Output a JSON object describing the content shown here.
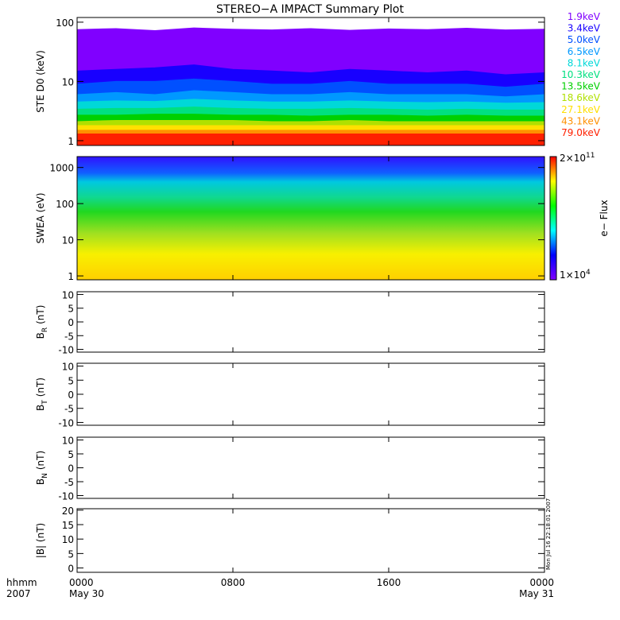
{
  "title": "STEREO−A IMPACT Summary Plot",
  "timestamp": "Mon Jul 16 22:18:01 2007",
  "x_axis": {
    "title": "hhmm",
    "year": "2007",
    "xlim": [
      0,
      24
    ],
    "xticks": [
      {
        "value": 0,
        "label": "0000"
      },
      {
        "value": 8,
        "label": "0800"
      },
      {
        "value": 16,
        "label": "1600"
      },
      {
        "value": 24,
        "label": "0000"
      }
    ],
    "date_labels": [
      {
        "value": 0,
        "label": "May 30"
      },
      {
        "value": 24,
        "label": "May 31"
      }
    ]
  },
  "chart_data": [
    {
      "type": "area",
      "ylabel": {
        "main": "STE D0 (keV)"
      },
      "log": true,
      "ylim": [
        0.83,
        120
      ],
      "yticks": [
        1,
        10,
        100
      ],
      "x": [
        0,
        2,
        4,
        6,
        8,
        10,
        12,
        14,
        16,
        18,
        20,
        22,
        24
      ],
      "series": [
        {
          "name": "1.9keV",
          "color": "#8000ff",
          "values": [
            75,
            78,
            72,
            80,
            76,
            74,
            78,
            73,
            77,
            75,
            79,
            74,
            76
          ]
        },
        {
          "name": "3.4keV",
          "color": "#1800ff",
          "values": [
            15,
            16,
            17,
            19,
            16,
            15,
            14,
            16,
            15,
            14,
            15,
            13,
            14
          ]
        },
        {
          "name": "5.0keV",
          "color": "#0050ff",
          "values": [
            9,
            10,
            10,
            11,
            10,
            9,
            9,
            10,
            9,
            9,
            9,
            8,
            9
          ]
        },
        {
          "name": "6.5keV",
          "color": "#0098ff",
          "values": [
            6,
            6.5,
            6,
            7,
            6.5,
            6,
            6,
            6.5,
            6,
            6,
            6,
            5.5,
            6
          ]
        },
        {
          "name": "8.1keV",
          "color": "#00d8d8",
          "values": [
            4.5,
            4.7,
            4.6,
            5,
            4.7,
            4.5,
            4.5,
            4.7,
            4.5,
            4.4,
            4.5,
            4.3,
            4.4
          ]
        },
        {
          "name": "10.3keV",
          "color": "#00e080",
          "values": [
            3.4,
            3.5,
            3.5,
            3.7,
            3.5,
            3.4,
            3.4,
            3.5,
            3.4,
            3.3,
            3.4,
            3.3,
            3.3
          ]
        },
        {
          "name": "13.5keV",
          "color": "#00d000",
          "values": [
            2.7,
            2.7,
            2.8,
            2.8,
            2.7,
            2.7,
            2.6,
            2.7,
            2.7,
            2.6,
            2.7,
            2.6,
            2.6
          ]
        },
        {
          "name": "18.6keV",
          "color": "#b0e000",
          "values": [
            2.1,
            2.2,
            2.2,
            2.2,
            2.2,
            2.1,
            2.1,
            2.2,
            2.1,
            2.1,
            2.1,
            2.1,
            2.1
          ]
        },
        {
          "name": "27.1keV",
          "color": "#ffe000",
          "values": [
            1.8,
            1.8,
            1.8,
            1.8,
            1.8,
            1.8,
            1.8,
            1.8,
            1.8,
            1.8,
            1.8,
            1.8,
            1.8
          ]
        },
        {
          "name": "43.1keV",
          "color": "#ff9000",
          "values": [
            1.5,
            1.5,
            1.5,
            1.5,
            1.5,
            1.5,
            1.5,
            1.5,
            1.5,
            1.5,
            1.5,
            1.5,
            1.5
          ]
        },
        {
          "name": "79.0keV",
          "color": "#ff2000",
          "values": [
            1.3,
            1.3,
            1.3,
            1.3,
            1.3,
            1.3,
            1.3,
            1.3,
            1.3,
            1.3,
            1.3,
            1.3,
            1.3
          ]
        }
      ]
    },
    {
      "type": "spectrogram",
      "ylabel": {
        "main": "SWEA (eV)"
      },
      "log": true,
      "ylim": [
        0.78,
        2000
      ],
      "yticks": [
        1,
        10,
        100,
        1000
      ],
      "spectrum": [
        {
          "value": 2000,
          "color": "#3010ff"
        },
        {
          "value": 700,
          "color": "#1060ff"
        },
        {
          "value": 400,
          "color": "#00c8e0"
        },
        {
          "value": 150,
          "color": "#10d890"
        },
        {
          "value": 60,
          "color": "#20d820"
        },
        {
          "value": 15,
          "color": "#a0e020"
        },
        {
          "value": 4,
          "color": "#f8f000"
        },
        {
          "value": 0.78,
          "color": "#ffd000"
        }
      ],
      "colorbar": {
        "title": "e− Flux",
        "colors": [
          "#8000ff",
          "#0000ff",
          "#00ffff",
          "#00ff00",
          "#ffff00",
          "#ff0000"
        ],
        "max_label": {
          "base": "2×10",
          "exp": "11"
        },
        "min_label": {
          "base": "1×10",
          "exp": "4"
        }
      }
    },
    {
      "type": "line",
      "ylabel": {
        "main": "B",
        "sub": "R",
        "unit": "(nT)"
      },
      "log": false,
      "ylim": [
        -11,
        11
      ],
      "yticks": [
        -10,
        -5,
        0,
        5,
        10
      ]
    },
    {
      "type": "line",
      "ylabel": {
        "main": "B",
        "sub": "T",
        "unit": "(nT)"
      },
      "log": false,
      "ylim": [
        -11,
        11
      ],
      "yticks": [
        -10,
        -5,
        0,
        5,
        10
      ]
    },
    {
      "type": "line",
      "ylabel": {
        "main": "B",
        "sub": "N",
        "unit": "(nT)"
      },
      "log": false,
      "ylim": [
        -11,
        11
      ],
      "yticks": [
        -10,
        -5,
        0,
        5,
        10
      ]
    },
    {
      "type": "line",
      "ylabel": {
        "main": "|B| (nT)"
      },
      "log": false,
      "ylim": [
        -1.5,
        20.5
      ],
      "yticks": [
        0,
        5,
        10,
        15,
        20
      ]
    }
  ]
}
